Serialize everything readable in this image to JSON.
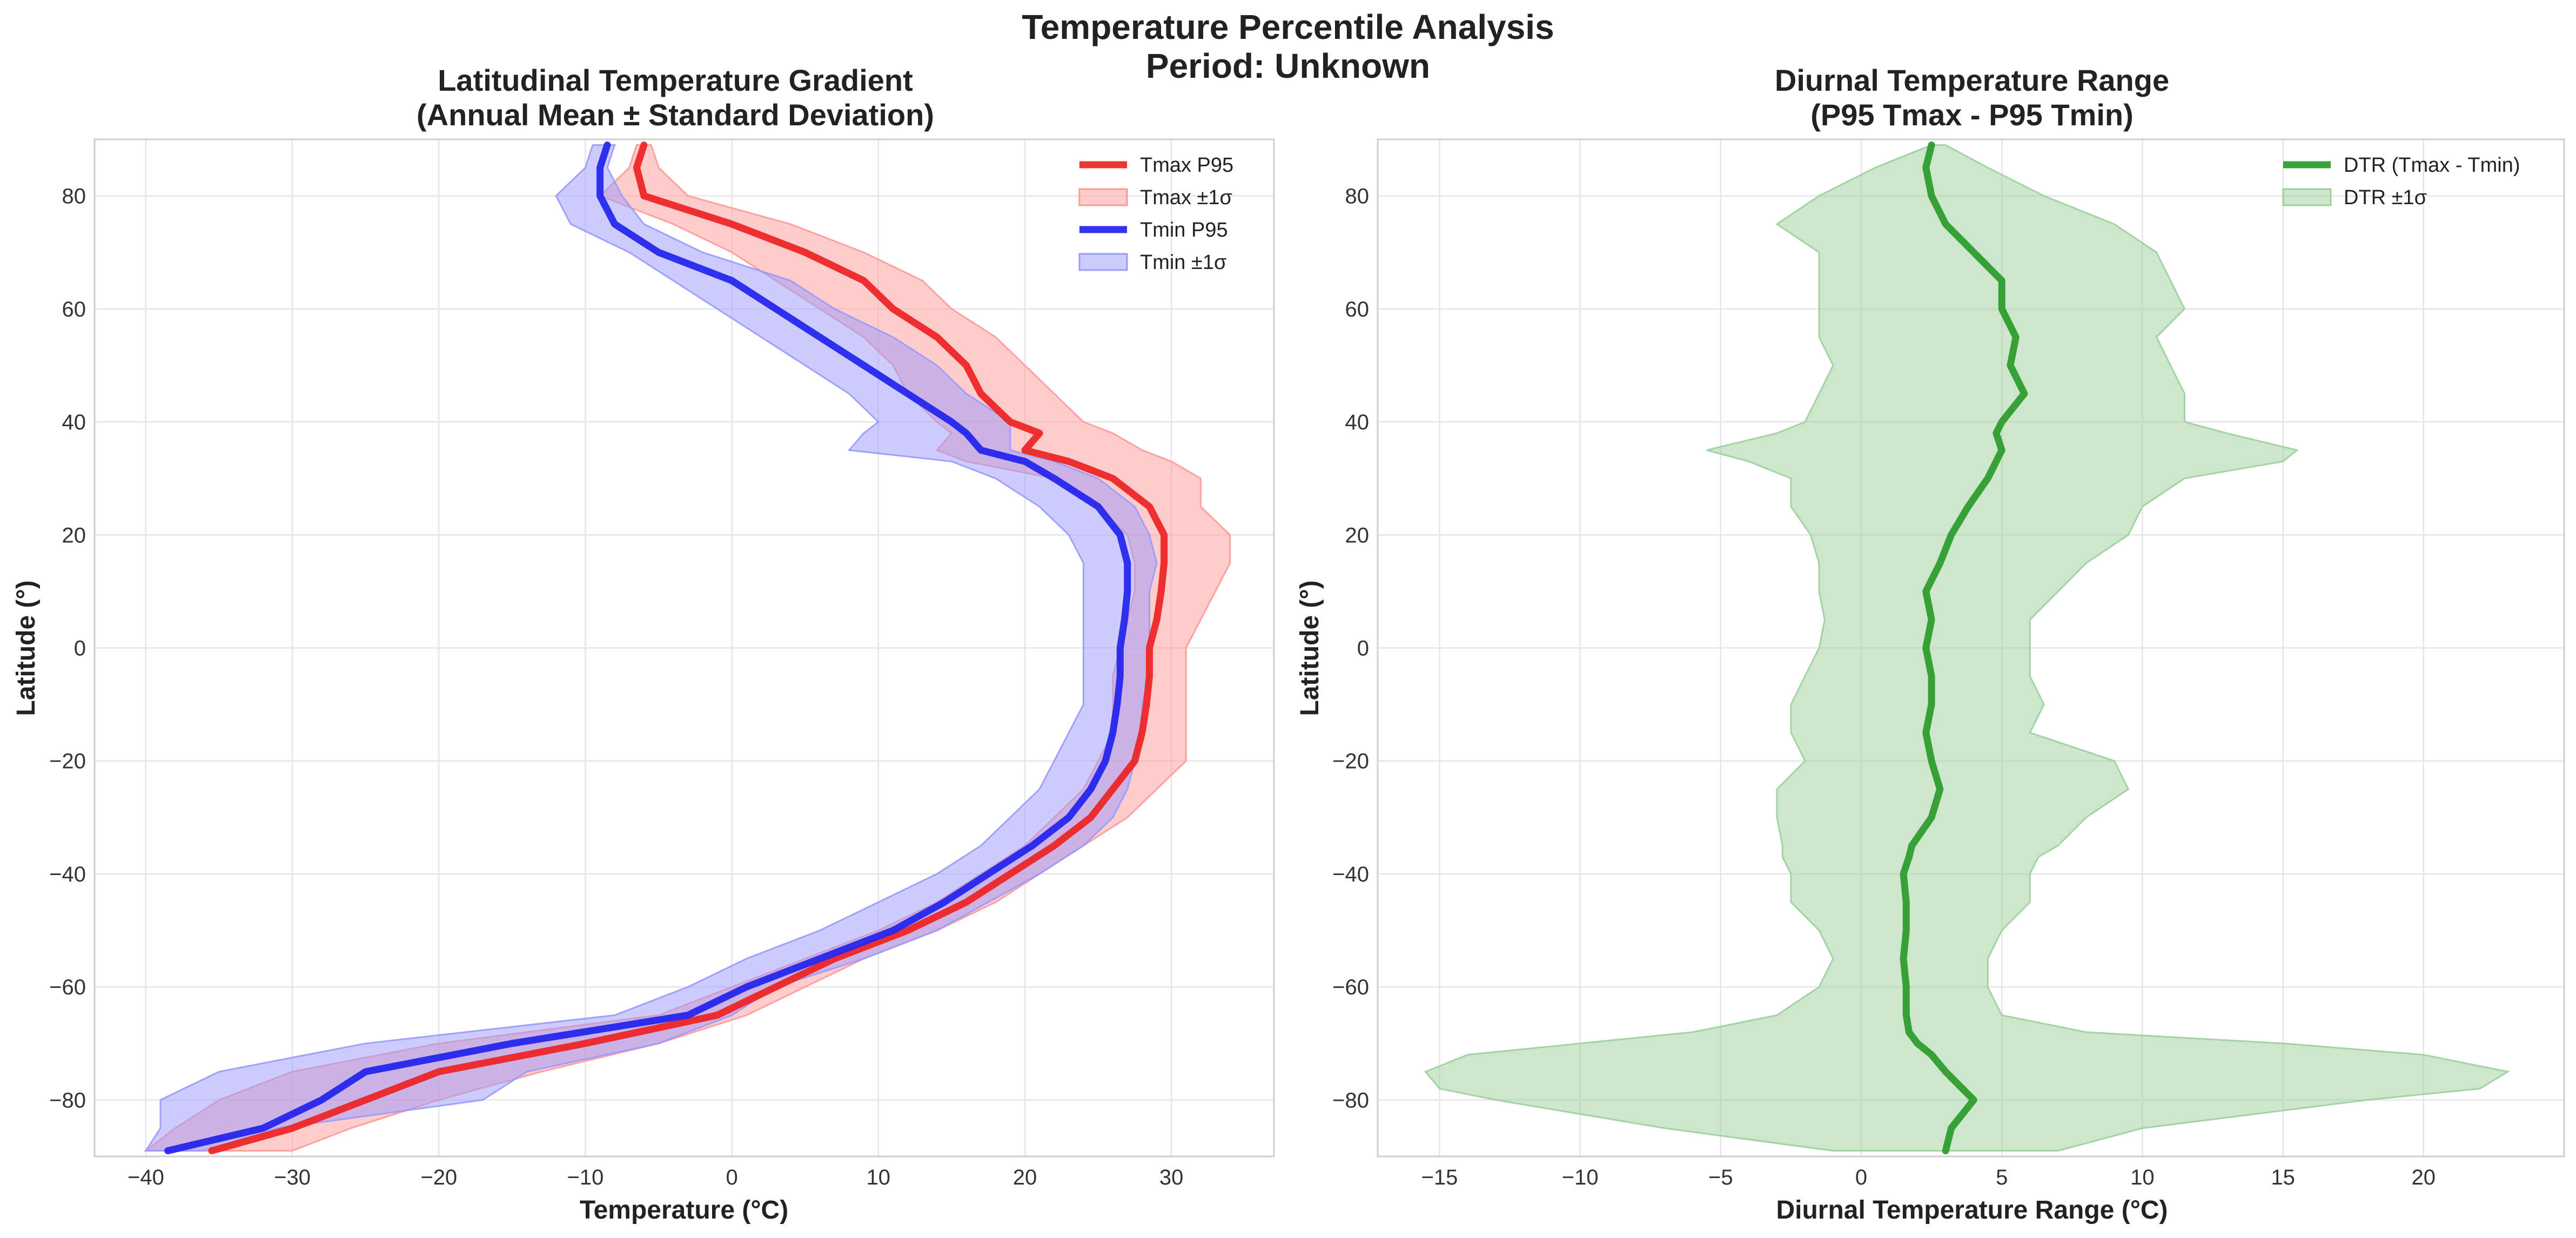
{
  "figure": {
    "title_line1": "Temperature Percentile Analysis",
    "title_line2": "Period: Unknown"
  },
  "colors": {
    "tmax": "#ee2222",
    "tmax_band": "#ff9999",
    "tmin": "#2222ee",
    "tmin_band": "#9999ff",
    "dtr": "#2a9a2a",
    "dtr_band": "#9ccf9c"
  },
  "chart_data": [
    {
      "type": "line",
      "orientation": "horizontal",
      "title_line1": "Latitudinal Temperature Gradient",
      "title_line2": "(Annual Mean ± Standard Deviation)",
      "xlabel": "Temperature (°C)",
      "ylabel": "Latitude (°)",
      "xlim": [
        -43.5,
        37
      ],
      "ylim": [
        -90,
        90
      ],
      "xticks": [
        -40,
        -30,
        -20,
        -10,
        0,
        10,
        20,
        30
      ],
      "yticks": [
        -80,
        -60,
        -40,
        -20,
        0,
        20,
        40,
        60,
        80
      ],
      "grid": true,
      "legend_position": "top-right",
      "latitude": [
        -89,
        -85,
        -80,
        -75,
        -70,
        -65,
        -60,
        -55,
        -50,
        -45,
        -40,
        -35,
        -30,
        -25,
        -20,
        -15,
        -10,
        -5,
        0,
        5,
        10,
        15,
        20,
        25,
        30,
        33,
        35,
        38,
        40,
        45,
        50,
        55,
        60,
        65,
        70,
        75,
        80,
        85,
        89
      ],
      "series": [
        {
          "name": "Tmax P95",
          "kind": "line",
          "color_key": "tmax",
          "values": [
            -35.5,
            -30,
            -25,
            -20,
            -10,
            -1,
            3,
            7,
            12,
            16,
            19,
            22,
            24.5,
            26,
            27.5,
            28,
            28.3,
            28.5,
            28.5,
            29,
            29.3,
            29.5,
            29.5,
            28.5,
            26,
            23,
            20,
            21,
            19,
            17,
            16,
            14,
            11,
            9,
            5,
            0,
            -6,
            -6.5,
            -6
          ]
        },
        {
          "name": "Tmax ±1σ",
          "kind": "band",
          "color_key": "tmax_band",
          "lower": [
            -40,
            -38,
            -35,
            -30,
            -20,
            -5,
            0,
            5,
            10,
            14,
            17,
            20,
            22,
            24,
            25,
            26,
            26,
            26,
            26.5,
            27,
            27.5,
            27.5,
            27,
            25,
            22,
            16,
            14,
            15,
            14,
            12,
            11,
            9,
            6,
            3,
            0,
            -4,
            -9,
            -7,
            -6.5
          ],
          "upper": [
            -30,
            -26,
            -20,
            -13,
            -5,
            1,
            5,
            9,
            14,
            18,
            21,
            24,
            27,
            29,
            31,
            31,
            31,
            31,
            31,
            32,
            33,
            34,
            34,
            32,
            32,
            30,
            28,
            26,
            24,
            22,
            20,
            18,
            15,
            13,
            9,
            4,
            -3,
            -5,
            -5.5
          ]
        },
        {
          "name": "Tmin P95",
          "kind": "line",
          "color_key": "tmin",
          "values": [
            -38.5,
            -32,
            -28,
            -25,
            -15,
            -3,
            1,
            6,
            11,
            14.5,
            17.5,
            20.5,
            23,
            24.5,
            25.5,
            26,
            26.3,
            26.5,
            26.5,
            26.8,
            27,
            27,
            26.5,
            25,
            22,
            20,
            17,
            16,
            15,
            12,
            9,
            6,
            3,
            0,
            -5,
            -8,
            -9,
            -9,
            -8.5
          ]
        },
        {
          "name": "Tmin ±1σ",
          "kind": "band",
          "color_key": "tmin_band",
          "lower": [
            -40,
            -39,
            -39,
            -35,
            -25,
            -8,
            -3,
            1,
            6,
            10,
            14,
            17,
            19,
            21,
            22,
            23,
            24,
            24,
            24,
            24,
            24,
            24,
            23,
            21,
            18,
            15,
            8,
            9,
            10,
            8,
            5,
            2,
            -1,
            -4,
            -7,
            -11,
            -12,
            -10,
            -9.5
          ],
          "upper": [
            -36,
            -31,
            -17,
            -14,
            -5,
            0,
            3,
            9,
            14,
            17.5,
            21,
            24,
            26,
            27,
            27.5,
            28,
            28,
            28.5,
            28.5,
            28.5,
            28.5,
            29,
            28.5,
            27.5,
            25,
            22,
            19,
            19,
            19,
            16,
            14,
            11,
            7,
            4,
            -2,
            -6,
            -7.5,
            -8.5,
            -8
          ]
        }
      ]
    },
    {
      "type": "line",
      "orientation": "horizontal",
      "title_line1": "Diurnal Temperature Range",
      "title_line2": "(P95 Tmax - P95 Tmin)",
      "xlabel": "Diurnal Temperature Range (°C)",
      "ylabel": "Latitude (°)",
      "xlim": [
        -17.2,
        25
      ],
      "ylim": [
        -90,
        90
      ],
      "xticks": [
        -15,
        -10,
        -5,
        0,
        5,
        10,
        15,
        20
      ],
      "yticks": [
        -80,
        -60,
        -40,
        -20,
        0,
        20,
        40,
        60,
        80
      ],
      "grid": true,
      "legend_position": "top-right",
      "latitude": [
        -89,
        -85,
        -80,
        -78,
        -75,
        -72,
        -70,
        -68,
        -65,
        -60,
        -55,
        -50,
        -45,
        -40,
        -37,
        -35,
        -30,
        -25,
        -20,
        -15,
        -10,
        -5,
        0,
        5,
        10,
        15,
        20,
        25,
        30,
        33,
        35,
        38,
        40,
        45,
        50,
        55,
        60,
        65,
        70,
        75,
        80,
        85,
        89
      ],
      "series": [
        {
          "name": "DTR (Tmax - Tmin)",
          "kind": "line",
          "color_key": "dtr",
          "values": [
            3,
            3.2,
            4,
            3.6,
            3,
            2.5,
            2,
            1.7,
            1.6,
            1.6,
            1.5,
            1.6,
            1.6,
            1.5,
            1.7,
            1.8,
            2.5,
            2.8,
            2.5,
            2.3,
            2.5,
            2.5,
            2.3,
            2.5,
            2.3,
            2.8,
            3.2,
            3.8,
            4.5,
            4.8,
            5,
            4.8,
            5,
            5.8,
            5.3,
            5.5,
            5,
            5,
            4,
            3,
            2.5,
            2.3,
            2.5
          ]
        },
        {
          "name": "DTR ±1σ",
          "kind": "band",
          "color_key": "dtr_band",
          "lower": [
            -1,
            -7,
            -13,
            -15,
            -15.5,
            -14,
            -10,
            -6,
            -3,
            -1.5,
            -1,
            -1.5,
            -2.5,
            -2.5,
            -2.8,
            -2.8,
            -3,
            -3,
            -2,
            -2.5,
            -2.5,
            -2,
            -1.5,
            -1.3,
            -1.5,
            -1.5,
            -1.8,
            -2.5,
            -2.5,
            -4,
            -5.5,
            -3,
            -2,
            -1.5,
            -1,
            -1.5,
            -1.5,
            -1.5,
            -1.5,
            -3,
            -1.5,
            0.5,
            2.5
          ],
          "upper": [
            7,
            10,
            18,
            22,
            23,
            20,
            15,
            8,
            5,
            4.5,
            4.5,
            5,
            6,
            6,
            6.3,
            7,
            8,
            9.5,
            9,
            6,
            6.5,
            6,
            6,
            6,
            7,
            8,
            9.5,
            10,
            11.5,
            15,
            15.5,
            13,
            11.5,
            11.5,
            11,
            10.5,
            11.5,
            11,
            10.5,
            9,
            6.5,
            4.5,
            3
          ]
        }
      ]
    }
  ]
}
